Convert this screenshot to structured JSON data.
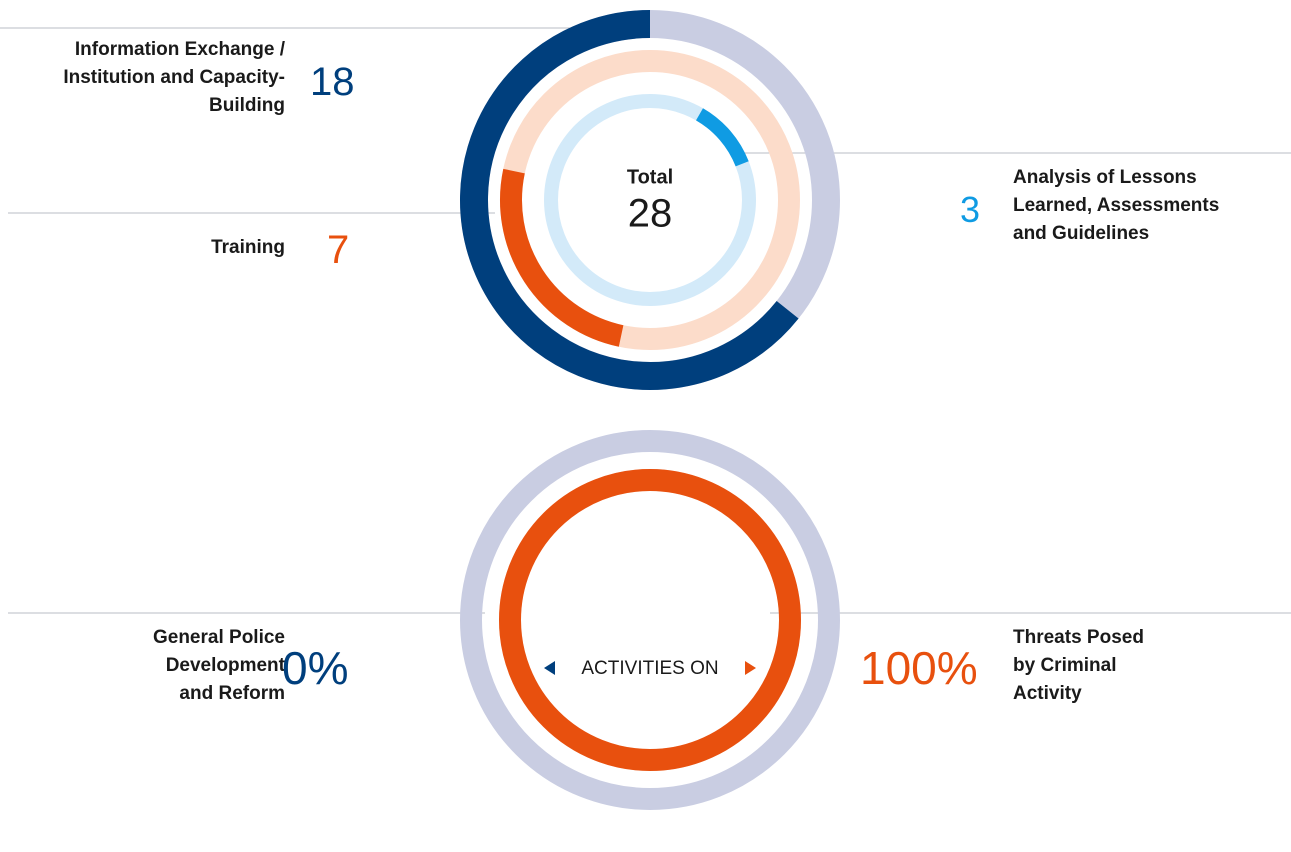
{
  "chart_data": [
    {
      "type": "donut",
      "center_label": "Total",
      "total": 28,
      "categories": [
        "Information Exchange / Institution and Capacity-Building",
        "Training",
        "Analysis of Lessons Learned, Assessments and Guidelines"
      ],
      "values": [
        18,
        7,
        3
      ],
      "colors": [
        "#003f7d",
        "#e8500e",
        "#0f9be3"
      ],
      "track_colors": [
        "#c9cde2",
        "#fcdcca",
        "#d3eaf9"
      ]
    },
    {
      "type": "donut",
      "center_label": "ACTIVITIES ON",
      "categories": [
        "General Police Development and Reform",
        "Threats Posed by Criminal Activity"
      ],
      "values": [
        0,
        100
      ],
      "value_labels": [
        "0%",
        "100%"
      ],
      "colors": [
        "#003f7d",
        "#e8500e"
      ],
      "track_colors": [
        "#c9cde2",
        "#fcdcca"
      ]
    }
  ]
}
